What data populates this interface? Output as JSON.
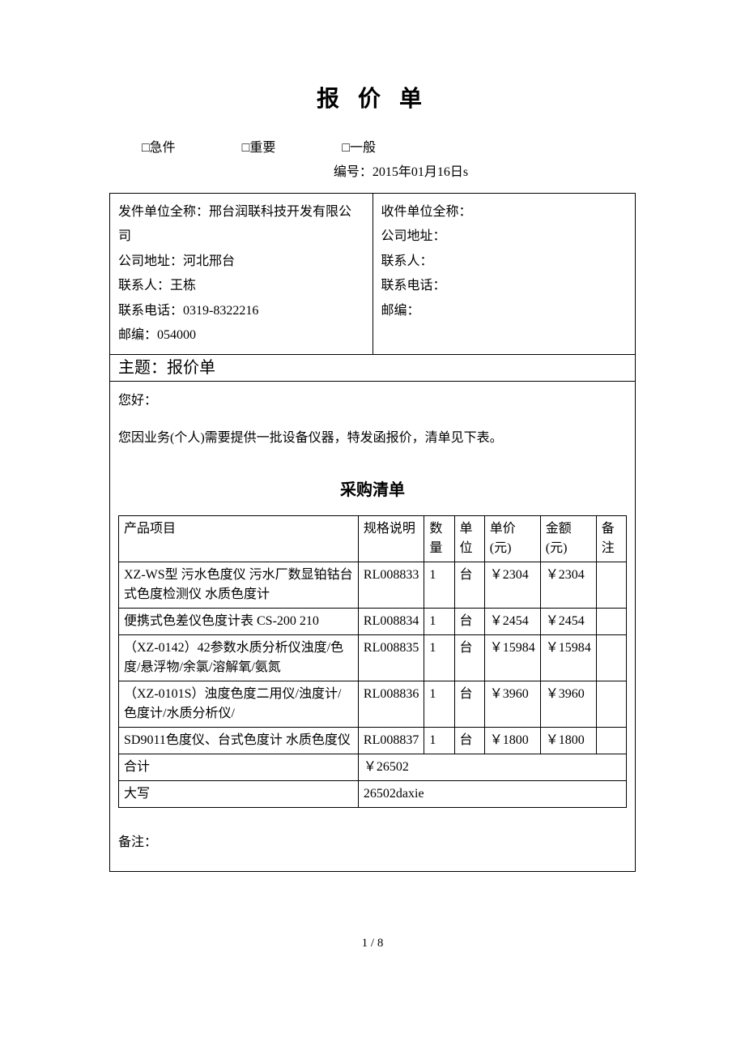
{
  "title": "报 价 单",
  "priority": {
    "urgent": "□急件",
    "important": "□重要",
    "normal": "□一般"
  },
  "docnum_label": "编号：",
  "docnum_value": "2015年01月16日s",
  "sender": {
    "org_label": "发件单位全称：",
    "org": "邢台润联科技开发有限公司",
    "addr_label": "公司地址：",
    "addr": "河北邢台",
    "contact_label": "联系人：",
    "contact": "王栋",
    "phone_label": "联系电话：",
    "phone": "0319-8322216",
    "zip_label": "邮编：",
    "zip": "054000"
  },
  "recipient": {
    "org_label": "收件单位全称：",
    "addr_label": "公司地址：",
    "contact_label": "联系人：",
    "phone_label": "联系电话：",
    "zip_label": "邮编："
  },
  "subject_label": "主题：",
  "subject_value": "报价单",
  "greeting": "您好：",
  "intro": "您因业务(个人)需要提供一批设备仪器，特发函报价，清单见下表。",
  "list_title": "采购清单",
  "columns": {
    "name": "产品项目",
    "spec": "规格说明",
    "qty": "数量",
    "unit": "单位",
    "price": "单价(元)",
    "amount": "金额(元)",
    "note": "备注"
  },
  "rows": [
    {
      "name": "XZ-WS型 污水色度仪 污水厂数显铂钴台式色度检测仪 水质色度计",
      "spec": "RL008833",
      "qty": "1",
      "unit": "台",
      "price": "￥2304",
      "amount": "￥2304",
      "note": ""
    },
    {
      "name": "便携式色差仪色度计表 CS-200 210",
      "spec": "RL008834",
      "qty": "1",
      "unit": "台",
      "price": "￥2454",
      "amount": "￥2454",
      "note": ""
    },
    {
      "name": "（XZ-0142）42参数水质分析仪浊度/色度/悬浮物/余氯/溶解氧/氨氮",
      "spec": "RL008835",
      "qty": "1",
      "unit": "台",
      "price": "￥15984",
      "amount": "￥15984",
      "note": ""
    },
    {
      "name": "（XZ-0101S）浊度色度二用仪/浊度计/色度计/水质分析仪/",
      "spec": "RL008836",
      "qty": "1",
      "unit": "台",
      "price": "￥3960",
      "amount": "￥3960",
      "note": ""
    },
    {
      "name": "SD9011色度仪、台式色度计 水质色度仪",
      "spec": "RL008837",
      "qty": "1",
      "unit": "台",
      "price": "￥1800",
      "amount": "￥1800",
      "note": ""
    }
  ],
  "total_label": "合计",
  "total_value": "￥26502",
  "caps_label": "大写",
  "caps_value": "26502daxie",
  "remarks_label": "备注：",
  "pager": "1 / 8"
}
